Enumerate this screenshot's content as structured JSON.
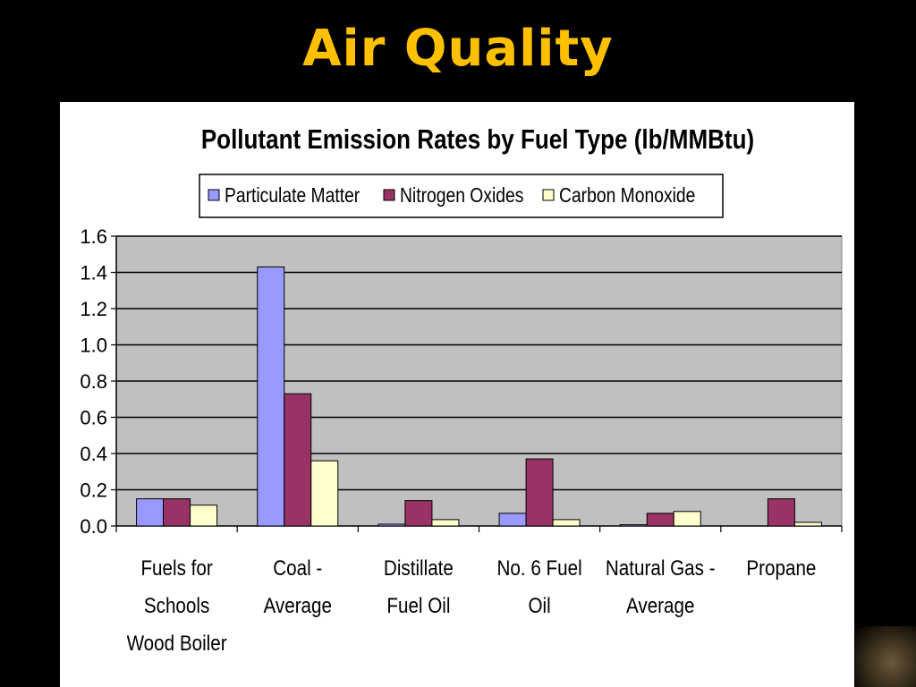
{
  "slide": {
    "title": "Air Quality"
  },
  "colors": {
    "background": "#000000",
    "title": "#FFC000",
    "plot_area": "#C0C0C0"
  },
  "chart_data": {
    "type": "bar",
    "title": "Pollutant Emission Rates by Fuel Type (lb/MMBtu)",
    "xlabel": "",
    "ylabel": "",
    "ylim": [
      0,
      1.6
    ],
    "yticks": [
      "0.0",
      "0.2",
      "0.4",
      "0.6",
      "0.8",
      "1.0",
      "1.2",
      "1.4",
      "1.6"
    ],
    "grid": true,
    "legend_position": "top",
    "categories": [
      [
        "Fuels for",
        "Schools",
        "Wood Boiler"
      ],
      [
        "Coal -",
        "Average"
      ],
      [
        "Distillate",
        "Fuel Oil"
      ],
      [
        "No. 6 Fuel",
        "Oil"
      ],
      [
        "Natural Gas -",
        "Average"
      ],
      [
        "Propane"
      ]
    ],
    "series": [
      {
        "name": "Particulate Matter",
        "color": "#9999FF",
        "values": [
          0.15,
          1.43,
          0.01,
          0.07,
          0.007,
          0
        ]
      },
      {
        "name": "Nitrogen Oxides",
        "color": "#993366",
        "values": [
          0.15,
          0.73,
          0.14,
          0.37,
          0.07,
          0.15
        ]
      },
      {
        "name": "Carbon Monoxide",
        "color": "#FFFFCC",
        "values": [
          0.115,
          0.36,
          0.035,
          0.035,
          0.08,
          0.02
        ]
      }
    ]
  }
}
